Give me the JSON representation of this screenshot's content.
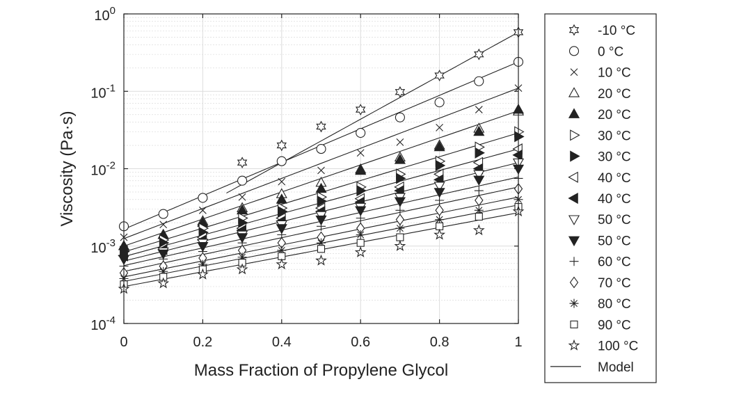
{
  "chart_data": {
    "type": "scatter",
    "title": "",
    "xlabel": "Mass Fraction of Propylene Glycol",
    "ylabel": "Viscosity (Pa·s)",
    "xlim": [
      0,
      1
    ],
    "ylim": [
      0.0001,
      1
    ],
    "yscale": "log",
    "grid": true,
    "legend_position": "right-outside",
    "x_ticks": [
      "0",
      "0.2",
      "0.4",
      "0.6",
      "0.8",
      "1"
    ],
    "y_ticks": [
      {
        "base": "10",
        "exp": "-4"
      },
      {
        "base": "10",
        "exp": "-3"
      },
      {
        "base": "10",
        "exp": "-2"
      },
      {
        "base": "10",
        "exp": "-1"
      },
      {
        "base": "10",
        "exp": "0"
      }
    ],
    "x": [
      0,
      0.1,
      0.2,
      0.3,
      0.4,
      0.5,
      0.6,
      0.7,
      0.8,
      0.9,
      1
    ],
    "series": [
      {
        "name": "-10 °C",
        "marker": "hexagram",
        "values": [
          null,
          null,
          null,
          0.012,
          0.02,
          0.035,
          0.058,
          0.098,
          0.16,
          0.3,
          0.58
        ]
      },
      {
        "name": "0 °C",
        "marker": "circle",
        "values": [
          0.0018,
          0.0026,
          0.0042,
          0.007,
          0.0125,
          0.018,
          0.029,
          0.046,
          0.072,
          0.135,
          0.24
        ]
      },
      {
        "name": "10 °C",
        "marker": "x",
        "values": [
          0.0013,
          0.0019,
          0.0029,
          0.0043,
          0.0068,
          0.0095,
          0.016,
          0.022,
          0.034,
          0.058,
          0.11
        ]
      },
      {
        "name": "20 °C",
        "marker": "triangle-up-open",
        "values": [
          0.001,
          0.0014,
          0.0021,
          0.0031,
          0.0047,
          0.0066,
          0.0098,
          0.014,
          0.02,
          0.033,
          0.055
        ]
      },
      {
        "name": "20 °C",
        "marker": "triangle-up-filled",
        "values": [
          0.001,
          0.0014,
          0.002,
          0.0029,
          0.004,
          0.0055,
          0.0094,
          0.013,
          0.019,
          0.03,
          0.058
        ]
      },
      {
        "name": "30 °C",
        "marker": "triangle-right-open",
        "values": [
          0.00085,
          0.0012,
          0.0017,
          0.0023,
          0.0031,
          0.0043,
          0.0058,
          0.0085,
          0.0125,
          0.019,
          0.03
        ]
      },
      {
        "name": "30 °C",
        "marker": "triangle-right-filled",
        "values": [
          0.00085,
          0.0011,
          0.0015,
          0.002,
          0.0028,
          0.0038,
          0.0052,
          0.0075,
          0.011,
          0.016,
          0.026
        ]
      },
      {
        "name": "40 °C",
        "marker": "triangle-left-open",
        "values": [
          0.00075,
          0.00095,
          0.0013,
          0.0017,
          0.0023,
          0.0031,
          0.0041,
          0.0058,
          0.0085,
          0.012,
          0.018
        ]
      },
      {
        "name": "40 °C",
        "marker": "triangle-left-filled",
        "values": [
          0.00075,
          0.0009,
          0.0012,
          0.0016,
          0.0021,
          0.0028,
          0.0037,
          0.0052,
          0.0072,
          0.01,
          0.015
        ]
      },
      {
        "name": "50 °C",
        "marker": "triangle-down-open",
        "values": [
          0.00068,
          0.00085,
          0.0011,
          0.0014,
          0.0019,
          0.0025,
          0.0032,
          0.0043,
          0.006,
          0.0085,
          0.012
        ]
      },
      {
        "name": "50 °C",
        "marker": "triangle-down-filled",
        "values": [
          0.00068,
          0.0008,
          0.001,
          0.0013,
          0.0017,
          0.0022,
          0.0029,
          0.0038,
          0.005,
          0.0072,
          0.01
        ]
      },
      {
        "name": "60 °C",
        "marker": "plus",
        "values": [
          0.00055,
          0.00068,
          0.00085,
          0.0011,
          0.0014,
          0.0018,
          0.0023,
          0.0029,
          0.0039,
          0.0052,
          0.0075
        ]
      },
      {
        "name": "70 °C",
        "marker": "diamond",
        "values": [
          0.00045,
          0.00055,
          0.0007,
          0.00088,
          0.0011,
          0.0013,
          0.0017,
          0.0022,
          0.0029,
          0.0039,
          0.0055
        ]
      },
      {
        "name": "80 °C",
        "marker": "asterisk",
        "values": [
          0.00038,
          0.00047,
          0.00058,
          0.00072,
          0.00088,
          0.0011,
          0.0014,
          0.0017,
          0.0022,
          0.0029,
          0.004
        ]
      },
      {
        "name": "90 °C",
        "marker": "square",
        "values": [
          0.00032,
          0.0004,
          0.0005,
          0.00061,
          0.00074,
          0.00092,
          0.0011,
          0.0013,
          0.0018,
          0.0024,
          0.0032
        ]
      },
      {
        "name": "100 °C",
        "marker": "pentagram",
        "values": [
          0.00028,
          0.00033,
          0.00043,
          0.0005,
          0.00058,
          0.00065,
          0.00083,
          0.001,
          0.0014,
          0.0016,
          0.0028
        ]
      }
    ],
    "model": {
      "name": "Model",
      "lines": [
        {
          "x_range": [
            0.26,
            1
          ],
          "at_x0": 0.0009,
          "at_x1": 0.58
        },
        {
          "x_range": [
            0,
            1
          ],
          "at_x0": 0.00165,
          "at_x1": 0.24
        },
        {
          "x_range": [
            0,
            1
          ],
          "at_x0": 0.00125,
          "at_x1": 0.11
        },
        {
          "x_range": [
            0,
            1
          ],
          "at_x0": 0.001,
          "at_x1": 0.056
        },
        {
          "x_range": [
            0,
            1
          ],
          "at_x0": 0.00084,
          "at_x1": 0.029
        },
        {
          "x_range": [
            0,
            1
          ],
          "at_x0": 0.00073,
          "at_x1": 0.018
        },
        {
          "x_range": [
            0,
            1
          ],
          "at_x0": 0.00064,
          "at_x1": 0.012
        },
        {
          "x_range": [
            0,
            1
          ],
          "at_x0": 0.00056,
          "at_x1": 0.0078
        },
        {
          "x_range": [
            0,
            1
          ],
          "at_x0": 0.00047,
          "at_x1": 0.0058
        },
        {
          "x_range": [
            0,
            1
          ],
          "at_x0": 0.0004,
          "at_x1": 0.0043
        },
        {
          "x_range": [
            0,
            1
          ],
          "at_x0": 0.00035,
          "at_x1": 0.0034
        },
        {
          "x_range": [
            0,
            1
          ],
          "at_x0": 0.0003,
          "at_x1": 0.0027
        }
      ]
    },
    "legend": [
      {
        "label": "-10 °C",
        "marker": "hexagram"
      },
      {
        "label": "0 °C",
        "marker": "circle"
      },
      {
        "label": "10 °C",
        "marker": "x"
      },
      {
        "label": "20 °C",
        "marker": "triangle-up-open"
      },
      {
        "label": "20 °C",
        "marker": "triangle-up-filled"
      },
      {
        "label": "30 °C",
        "marker": "triangle-right-open"
      },
      {
        "label": "30 °C",
        "marker": "triangle-right-filled"
      },
      {
        "label": "40 °C",
        "marker": "triangle-left-open"
      },
      {
        "label": "40 °C",
        "marker": "triangle-left-filled"
      },
      {
        "label": "50 °C",
        "marker": "triangle-down-open"
      },
      {
        "label": "50 °C",
        "marker": "triangle-down-filled"
      },
      {
        "label": "60 °C",
        "marker": "plus"
      },
      {
        "label": "70 °C",
        "marker": "diamond"
      },
      {
        "label": "80 °C",
        "marker": "asterisk"
      },
      {
        "label": "90 °C",
        "marker": "square"
      },
      {
        "label": "100 °C",
        "marker": "pentagram"
      },
      {
        "label": "Model",
        "marker": "line"
      }
    ],
    "colors": {
      "ink": "#222222",
      "grid": "#dcdcdc",
      "background": "#ffffff"
    }
  }
}
